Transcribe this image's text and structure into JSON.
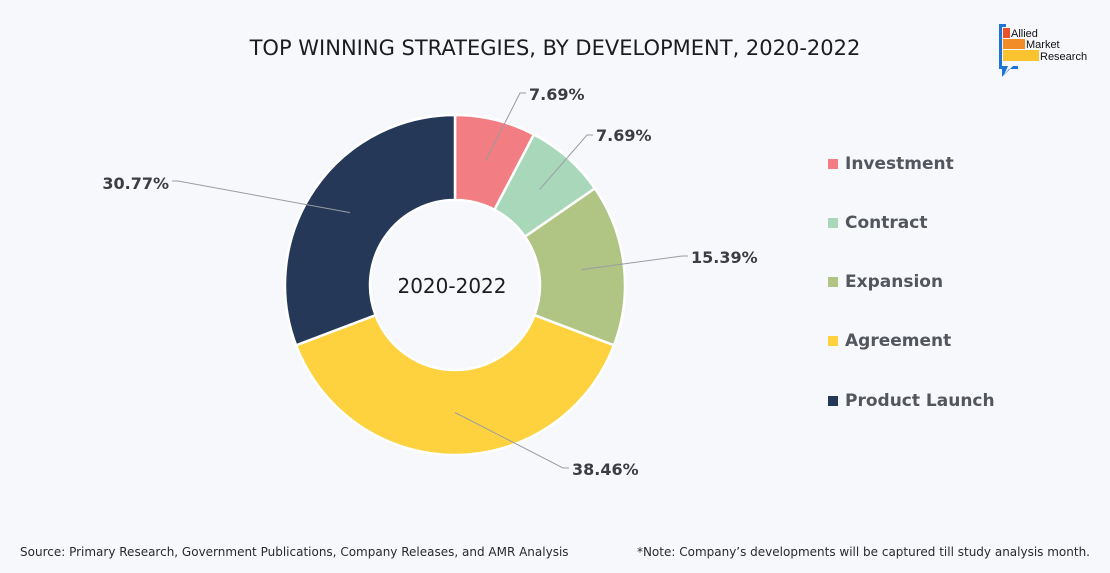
{
  "chart_data": {
    "type": "pie",
    "subtype": "donut",
    "title": "TOP WINNING STRATEGIES, BY DEVELOPMENT, 2020-2022",
    "center_label": "2020-2022",
    "categories": [
      "Investment",
      "Contract",
      "Expansion",
      "Agreement",
      "Product Launch"
    ],
    "values": [
      7.69,
      7.69,
      15.39,
      38.46,
      30.77
    ],
    "data_labels": [
      "7.69%",
      "7.69%",
      "15.39%",
      "38.46%",
      "30.77%"
    ],
    "colors": [
      "#f27d82",
      "#a8d8b9",
      "#b0c584",
      "#fdd23e",
      "#253858"
    ],
    "legend": {
      "position": "right",
      "entries": [
        "Investment",
        "Contract",
        "Expansion",
        "Agreement",
        "Product Launch"
      ]
    },
    "start_angle": "12 o'clock",
    "direction": "clockwise"
  },
  "logo": {
    "lines": [
      "Allied",
      "Market",
      "Research"
    ],
    "colors": [
      "#e8512a",
      "#f28c28",
      "#fcc331",
      "#1e73d8"
    ]
  },
  "footer": {
    "source": "Source: Primary Research, Government Publications, Company Releases, and AMR Analysis",
    "note": "*Note: Company’s developments will be captured till study analysis month."
  }
}
